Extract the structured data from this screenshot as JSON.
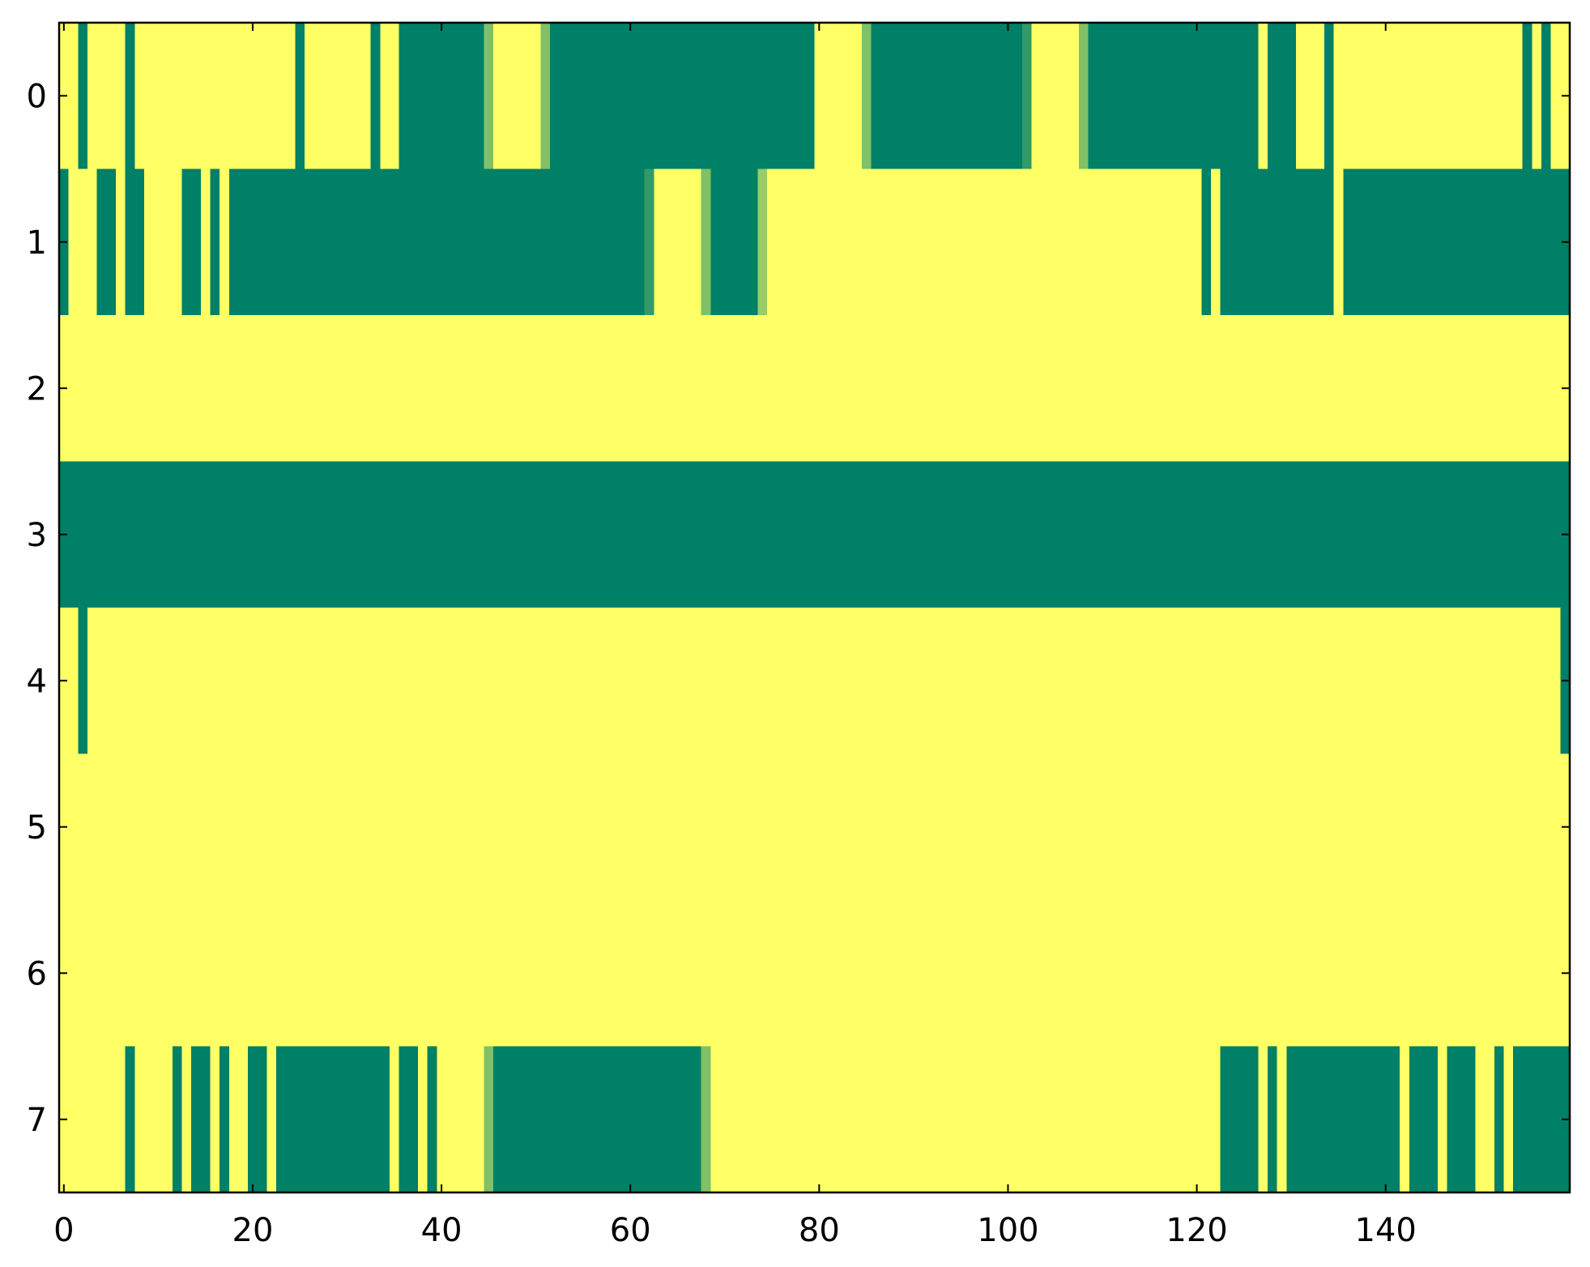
{
  "chart_data": {
    "type": "heatmap",
    "colors": [
      "#ffff66",
      "#008066"
    ],
    "xlim": [
      -0.5,
      159.5
    ],
    "ylim": [
      7.5,
      -0.5
    ],
    "xticks": [
      0,
      20,
      40,
      60,
      80,
      100,
      120,
      140
    ],
    "yticks": [
      0,
      1,
      2,
      3,
      4,
      5,
      6,
      7
    ],
    "z": [
      [
        0,
        0,
        1,
        0,
        0,
        0,
        0,
        1,
        0,
        0,
        0,
        0,
        0,
        0,
        0,
        0,
        0,
        0,
        0,
        0,
        0,
        0,
        0,
        0,
        0,
        1,
        0,
        0,
        0,
        0,
        0,
        0,
        0,
        1,
        0,
        0,
        1,
        1,
        1,
        1,
        1,
        1,
        1,
        1,
        1,
        0.5,
        0,
        0,
        0,
        0,
        0,
        0.5,
        1,
        1,
        1,
        1,
        1,
        1,
        1,
        1,
        1,
        1,
        1,
        1,
        1,
        1,
        1,
        1,
        1,
        1,
        1,
        1,
        1,
        1,
        1,
        1,
        1,
        1,
        1,
        1,
        0,
        0,
        0,
        0,
        0,
        0.5,
        1,
        1,
        1,
        1,
        1,
        1,
        1,
        1,
        1,
        1,
        1,
        1,
        1,
        1,
        1,
        1,
        0.8,
        0,
        0,
        0,
        0,
        0,
        0.5,
        1,
        1,
        1,
        1,
        1,
        1,
        1,
        1,
        1,
        1,
        1,
        1,
        1,
        1,
        1,
        1,
        1,
        1,
        0,
        1,
        1,
        1,
        0,
        0,
        0,
        1,
        0,
        0,
        0,
        0,
        0,
        0,
        0,
        0,
        0,
        0,
        0,
        0,
        0,
        0,
        0,
        0,
        0,
        0,
        0,
        0,
        1,
        0,
        1,
        0,
        0
      ],
      [
        1,
        0,
        0,
        0,
        1,
        1,
        0,
        1,
        1,
        0,
        0,
        0,
        0,
        1,
        1,
        0,
        1,
        0,
        1,
        1,
        1,
        1,
        1,
        1,
        1,
        1,
        1,
        1,
        1,
        1,
        1,
        1,
        1,
        1,
        1,
        1,
        1,
        1,
        1,
        1,
        1,
        1,
        1,
        1,
        1,
        1,
        1,
        1,
        1,
        1,
        1,
        1,
        1,
        1,
        1,
        1,
        1,
        1,
        1,
        1,
        1,
        1,
        0.8,
        0,
        0,
        0,
        0,
        0,
        0.5,
        1,
        1,
        1,
        1,
        1,
        0.4,
        0,
        0,
        0,
        0,
        0,
        0,
        0,
        0,
        0,
        0,
        0,
        0,
        0,
        0,
        0,
        0,
        0,
        0,
        0,
        0,
        0,
        0,
        0,
        0,
        0,
        0,
        0,
        0,
        0,
        0,
        0,
        0,
        0,
        0,
        0,
        0,
        0,
        0,
        0,
        0,
        0,
        0,
        0,
        0,
        0,
        0,
        1,
        0,
        1,
        1,
        1,
        1,
        1,
        1,
        1,
        1,
        1,
        1,
        1,
        1,
        0,
        1,
        1,
        1,
        1,
        1,
        1,
        1,
        1,
        1,
        1,
        1,
        1,
        1,
        1,
        1,
        1,
        1,
        1,
        1,
        1,
        1,
        1,
        1,
        1
      ],
      [
        0,
        0,
        0,
        0,
        0,
        0,
        0,
        0,
        0,
        0,
        0,
        0,
        0,
        0,
        0,
        0,
        0,
        0,
        0,
        0,
        0,
        0,
        0,
        0,
        0,
        0,
        0,
        0,
        0,
        0,
        0,
        0,
        0,
        0,
        0,
        0,
        0,
        0,
        0,
        0,
        0,
        0,
        0,
        0,
        0,
        0,
        0,
        0,
        0,
        0,
        0,
        0,
        0,
        0,
        0,
        0,
        0,
        0,
        0,
        0,
        0,
        0,
        0,
        0,
        0,
        0,
        0,
        0,
        0,
        0,
        0,
        0,
        0,
        0,
        0,
        0,
        0,
        0,
        0,
        0,
        0,
        0,
        0,
        0,
        0,
        0,
        0,
        0,
        0,
        0,
        0,
        0,
        0,
        0,
        0,
        0,
        0,
        0,
        0,
        0,
        0,
        0,
        0,
        0,
        0,
        0,
        0,
        0,
        0,
        0,
        0,
        0,
        0,
        0,
        0,
        0,
        0,
        0,
        0,
        0,
        0,
        0,
        0,
        0,
        0,
        0,
        0,
        0,
        0,
        0,
        0,
        0,
        0,
        0,
        0,
        0,
        0,
        0,
        0,
        0,
        0,
        0,
        0,
        0,
        0,
        0,
        0,
        0,
        0,
        0,
        0,
        0,
        0,
        0,
        0,
        0,
        0,
        0,
        0,
        0
      ],
      [
        1,
        1,
        1,
        1,
        1,
        1,
        1,
        1,
        1,
        1,
        1,
        1,
        1,
        1,
        1,
        1,
        1,
        1,
        1,
        1,
        1,
        1,
        1,
        1,
        1,
        1,
        1,
        1,
        1,
        1,
        1,
        1,
        1,
        1,
        1,
        1,
        1,
        1,
        1,
        1,
        1,
        1,
        1,
        1,
        1,
        1,
        1,
        1,
        1,
        1,
        1,
        1,
        1,
        1,
        1,
        1,
        1,
        1,
        1,
        1,
        1,
        1,
        1,
        1,
        1,
        1,
        1,
        1,
        1,
        1,
        1,
        1,
        1,
        1,
        1,
        1,
        1,
        1,
        1,
        1,
        1,
        1,
        1,
        1,
        1,
        1,
        1,
        1,
        1,
        1,
        1,
        1,
        1,
        1,
        1,
        1,
        1,
        1,
        1,
        1,
        1,
        1,
        1,
        1,
        1,
        1,
        1,
        1,
        1,
        1,
        1,
        1,
        1,
        1,
        1,
        1,
        1,
        1,
        1,
        1,
        1,
        1,
        1,
        1,
        1,
        1,
        1,
        1,
        1,
        1,
        1,
        1,
        1,
        1,
        1,
        1,
        1,
        1,
        1,
        1,
        1,
        1,
        1,
        1,
        1,
        1,
        1,
        1,
        1,
        1,
        1,
        1,
        1,
        1,
        1,
        1,
        1,
        1,
        1,
        1
      ],
      [
        0,
        0,
        1,
        0,
        0,
        0,
        0,
        0,
        0,
        0,
        0,
        0,
        0,
        0,
        0,
        0,
        0,
        0,
        0,
        0,
        0,
        0,
        0,
        0,
        0,
        0,
        0,
        0,
        0,
        0,
        0,
        0,
        0,
        0,
        0,
        0,
        0,
        0,
        0,
        0,
        0,
        0,
        0,
        0,
        0,
        0,
        0,
        0,
        0,
        0,
        0,
        0,
        0,
        0,
        0,
        0,
        0,
        0,
        0,
        0,
        0,
        0,
        0,
        0,
        0,
        0,
        0,
        0,
        0,
        0,
        0,
        0,
        0,
        0,
        0,
        0,
        0,
        0,
        0,
        0,
        0,
        0,
        0,
        0,
        0,
        0,
        0,
        0,
        0,
        0,
        0,
        0,
        0,
        0,
        0,
        0,
        0,
        0,
        0,
        0,
        0,
        0,
        0,
        0,
        0,
        0,
        0,
        0,
        0,
        0,
        0,
        0,
        0,
        0,
        0,
        0,
        0,
        0,
        0,
        0,
        0,
        0,
        0,
        0,
        0,
        0,
        0,
        0,
        0,
        0,
        0,
        0,
        0,
        0,
        0,
        0,
        0,
        0,
        0,
        0,
        0,
        0,
        0,
        0,
        0,
        0,
        0,
        0,
        0,
        0,
        0,
        0,
        0,
        0,
        0,
        0,
        0,
        0,
        0,
        1
      ],
      [
        0,
        0,
        0,
        0,
        0,
        0,
        0,
        0,
        0,
        0,
        0,
        0,
        0,
        0,
        0,
        0,
        0,
        0,
        0,
        0,
        0,
        0,
        0,
        0,
        0,
        0,
        0,
        0,
        0,
        0,
        0,
        0,
        0,
        0,
        0,
        0,
        0,
        0,
        0,
        0,
        0,
        0,
        0,
        0,
        0,
        0,
        0,
        0,
        0,
        0,
        0,
        0,
        0,
        0,
        0,
        0,
        0,
        0,
        0,
        0,
        0,
        0,
        0,
        0,
        0,
        0,
        0,
        0,
        0,
        0,
        0,
        0,
        0,
        0,
        0,
        0,
        0,
        0,
        0,
        0,
        0,
        0,
        0,
        0,
        0,
        0,
        0,
        0,
        0,
        0,
        0,
        0,
        0,
        0,
        0,
        0,
        0,
        0,
        0,
        0,
        0,
        0,
        0,
        0,
        0,
        0,
        0,
        0,
        0,
        0,
        0,
        0,
        0,
        0,
        0,
        0,
        0,
        0,
        0,
        0,
        0,
        0,
        0,
        0,
        0,
        0,
        0,
        0,
        0,
        0,
        0,
        0,
        0,
        0,
        0,
        0,
        0,
        0,
        0,
        0,
        0,
        0,
        0,
        0,
        0,
        0,
        0,
        0,
        0,
        0,
        0,
        0,
        0,
        0,
        0,
        0,
        0,
        0,
        0,
        0
      ],
      [
        0,
        0,
        0,
        0,
        0,
        0,
        0,
        0,
        0,
        0,
        0,
        0,
        0,
        0,
        0,
        0,
        0,
        0,
        0,
        0,
        0,
        0,
        0,
        0,
        0,
        0,
        0,
        0,
        0,
        0,
        0,
        0,
        0,
        0,
        0,
        0,
        0,
        0,
        0,
        0,
        0,
        0,
        0,
        0,
        0,
        0,
        0,
        0,
        0,
        0,
        0,
        0,
        0,
        0,
        0,
        0,
        0,
        0,
        0,
        0,
        0,
        0,
        0,
        0,
        0,
        0,
        0,
        0,
        0,
        0,
        0,
        0,
        0,
        0,
        0,
        0,
        0,
        0,
        0,
        0,
        0,
        0,
        0,
        0,
        0,
        0,
        0,
        0,
        0,
        0,
        0,
        0,
        0,
        0,
        0,
        0,
        0,
        0,
        0,
        0,
        0,
        0,
        0,
        0,
        0,
        0,
        0,
        0,
        0,
        0,
        0,
        0,
        0,
        0,
        0,
        0,
        0,
        0,
        0,
        0,
        0,
        0,
        0,
        0,
        0,
        0,
        0,
        0,
        0,
        0,
        0,
        0,
        0,
        0,
        0,
        0,
        0,
        0,
        0,
        0,
        0,
        0,
        0,
        0,
        0,
        0,
        0,
        0,
        0,
        0,
        0,
        0,
        0,
        0,
        0,
        0,
        0,
        0,
        0,
        0
      ],
      [
        0,
        0,
        0,
        0,
        0,
        0,
        0,
        1,
        0,
        0,
        0,
        0,
        1,
        0,
        1,
        1,
        0,
        1,
        0,
        0,
        1,
        1,
        0,
        1,
        1,
        1,
        1,
        1,
        1,
        1,
        1,
        1,
        1,
        1,
        1,
        0,
        1,
        1,
        0,
        1,
        0,
        0,
        0,
        0,
        0,
        0.5,
        1,
        1,
        1,
        1,
        1,
        1,
        1,
        1,
        1,
        1,
        1,
        1,
        1,
        1,
        1,
        1,
        1,
        1,
        1,
        1,
        1,
        1,
        0.5,
        0,
        0,
        0,
        0,
        0,
        0,
        0,
        0,
        0,
        0,
        0,
        0,
        0,
        0,
        0,
        0,
        0,
        0,
        0,
        0,
        0,
        0,
        0,
        0,
        0,
        0,
        0,
        0,
        0,
        0,
        0,
        0,
        0,
        0,
        0,
        0,
        0,
        0,
        0,
        0,
        0,
        0,
        0,
        0,
        0,
        0,
        0,
        0,
        0,
        0,
        0,
        0,
        0,
        0,
        1,
        1,
        1,
        1,
        0,
        1,
        0,
        1,
        1,
        1,
        1,
        1,
        1,
        1,
        1,
        1,
        1,
        1,
        1,
        0,
        1,
        1,
        1,
        0,
        1,
        1,
        1,
        0,
        0,
        1,
        0,
        1,
        1,
        1,
        1,
        1,
        1
      ]
    ]
  }
}
